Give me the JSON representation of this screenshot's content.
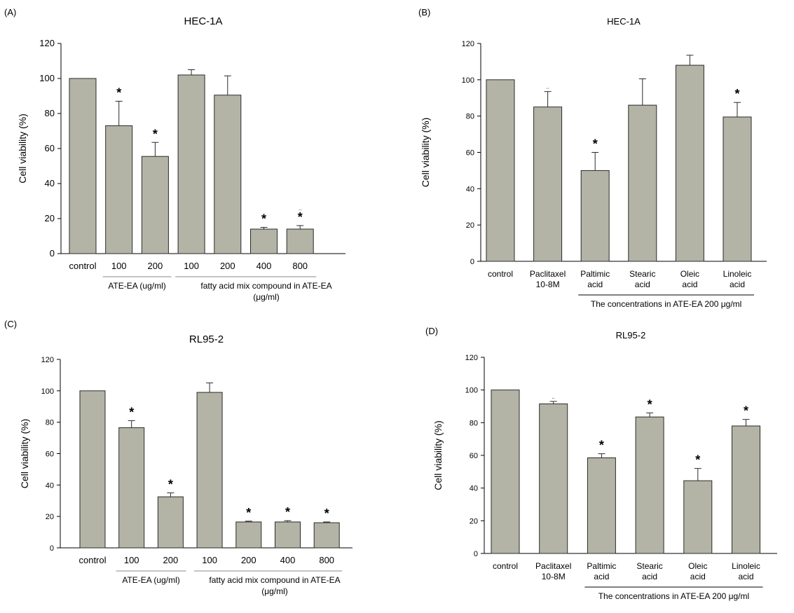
{
  "colors": {
    "bar_fill": "#b4b4a6",
    "bar_stroke": "#2a2a2a",
    "axis": "#000000",
    "rule": "#888888"
  },
  "chart_data": [
    {
      "panel": "(A)",
      "type": "bar",
      "title": "HEC-1A",
      "ylabel": "Cell viability (%)",
      "xlabel": "",
      "ylim": [
        0,
        120
      ],
      "yticks": [
        0,
        20,
        40,
        60,
        80,
        100,
        120
      ],
      "categories": [
        "control",
        "100",
        "200",
        "100",
        "200",
        "400",
        "800"
      ],
      "values": [
        100,
        73,
        55.5,
        102,
        90.5,
        14,
        14
      ],
      "errors": [
        0,
        14,
        8,
        3,
        11,
        1,
        2
      ],
      "significance": [
        "",
        "*",
        "*",
        "",
        "",
        "*",
        "*"
      ],
      "faint_marks": [
        "",
        "",
        "",
        "",
        "",
        "",
        ".."
      ],
      "groups": [
        {
          "label": "ATE-EA  (ug/ml)",
          "from": 1,
          "to": 2
        },
        {
          "label": "fatty acid mix compound in ATE-EA",
          "label2": "(μg/ml)",
          "from": 3,
          "to": 6
        }
      ]
    },
    {
      "panel": "(B)",
      "type": "bar",
      "title": "HEC-1A",
      "ylabel": "Cell viability (%)",
      "xlabel": "",
      "ylim": [
        0,
        120
      ],
      "yticks": [
        0,
        20,
        40,
        60,
        80,
        100,
        120
      ],
      "categories": [
        "control",
        "Paclitaxel\n10-8M",
        "Paltimic\nacid",
        "Stearic\nacid",
        "Oleic\nacid",
        "Linoleic\nacid"
      ],
      "values": [
        100,
        85,
        50,
        86,
        108,
        79.5
      ],
      "errors": [
        0,
        8.5,
        10,
        14.5,
        5.5,
        8
      ],
      "significance": [
        "",
        "",
        "*",
        "",
        "",
        "*"
      ],
      "faint_marks": [
        "",
        "..",
        "",
        "",
        "",
        ""
      ],
      "groups": [
        {
          "label": "The concentrations in ATE-EA 200 μg/ml",
          "from": 2,
          "to": 5
        }
      ]
    },
    {
      "panel": "(C)",
      "type": "bar",
      "title": "RL95-2",
      "ylabel": "Cell viability (%)",
      "xlabel": "",
      "ylim": [
        0,
        120
      ],
      "yticks": [
        0,
        20,
        40,
        60,
        80,
        100,
        120
      ],
      "categories": [
        "control",
        "100",
        "200",
        "100",
        "200",
        "400",
        "800"
      ],
      "values": [
        100,
        76.5,
        32.5,
        99,
        16.5,
        16.5,
        16
      ],
      "errors": [
        0,
        4.5,
        2.5,
        6,
        0.5,
        0.8,
        0.5
      ],
      "significance": [
        "",
        "*",
        "*",
        "",
        "*",
        "*",
        "*"
      ],
      "faint_marks": [
        "",
        "",
        "",
        "",
        "",
        "",
        ""
      ],
      "groups": [
        {
          "label": "ATE-EA   (ug/ml)",
          "from": 1,
          "to": 2
        },
        {
          "label": "fatty acid mix compound in ATE-EA",
          "label2": "(μg/ml)",
          "from": 3,
          "to": 6
        }
      ]
    },
    {
      "panel": "(D)",
      "type": "bar",
      "title": "RL95-2",
      "ylabel": "Cell viability (%)",
      "xlabel": "",
      "ylim": [
        0,
        120
      ],
      "yticks": [
        0,
        20,
        40,
        60,
        80,
        100,
        120
      ],
      "categories": [
        "control",
        "Paclitaxel\n10-8M",
        "Paltimic\nacid",
        "Stearic\nacid",
        "Oleic\nacid",
        "Linoleic\nacid"
      ],
      "values": [
        100,
        91.5,
        58.5,
        83.5,
        44.5,
        78
      ],
      "errors": [
        0,
        1.5,
        2.5,
        2.5,
        7.5,
        4
      ],
      "significance": [
        "",
        "",
        "*",
        "*",
        "*",
        "*"
      ],
      "faint_marks": [
        "",
        "..",
        "",
        "",
        "",
        ""
      ],
      "groups": [
        {
          "label": "The concentrations in ATE-EA 200 μg/ml",
          "from": 2,
          "to": 5
        }
      ]
    }
  ]
}
